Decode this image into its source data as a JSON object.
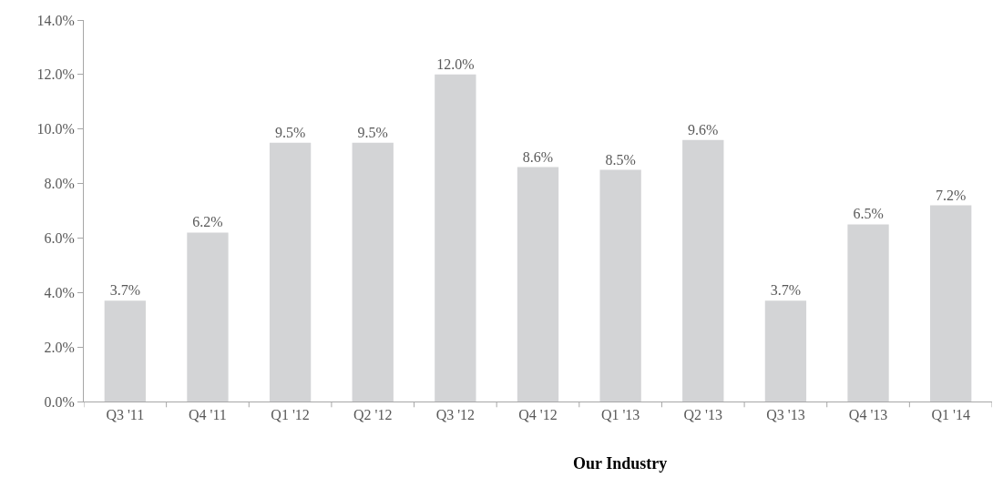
{
  "chart_data": {
    "type": "bar",
    "categories": [
      "Q3 '11",
      "Q4 '11",
      "Q1 '12",
      "Q2 '12",
      "Q3 '12",
      "Q4 '12",
      "Q1 '13",
      "Q2 '13",
      "Q3 '13",
      "Q4 '13",
      "Q1 '14"
    ],
    "values": [
      3.7,
      6.2,
      9.5,
      9.5,
      12.0,
      8.6,
      8.5,
      9.6,
      3.7,
      6.5,
      7.2
    ],
    "color": "#d3d4d6",
    "ylim": [
      0,
      14
    ],
    "yticks": [
      {
        "value": 0,
        "label": "0.0%"
      },
      {
        "value": 2,
        "label": "2.0%"
      },
      {
        "value": 4,
        "label": "4.0%"
      },
      {
        "value": 6,
        "label": "6.0%"
      },
      {
        "value": 8,
        "label": "8.0%"
      },
      {
        "value": 10,
        "label": "10.0%"
      },
      {
        "value": 12,
        "label": "12.0%"
      },
      {
        "value": 14,
        "label": "14.0%"
      }
    ],
    "value_labels": [
      "3.7%",
      "6.2%",
      "9.5%",
      "9.5%",
      "12.0%",
      "8.6%",
      "8.5%",
      "9.6%",
      "3.7%",
      "6.5%",
      "7.2%"
    ],
    "annotations": [
      "Our Industry"
    ]
  }
}
